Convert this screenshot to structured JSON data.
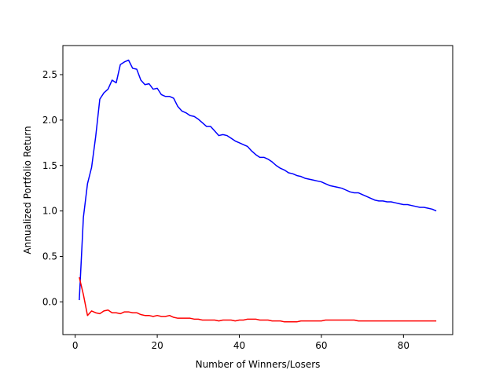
{
  "chart_data": {
    "type": "line",
    "title": "",
    "xlabel": "Number of Winners/Losers",
    "ylabel": "Annualized Portfolio Return",
    "xlim": [
      -3,
      92
    ],
    "ylim": [
      -0.36,
      2.82
    ],
    "xticks": [
      0,
      20,
      40,
      60,
      80
    ],
    "yticks": [
      0.0,
      0.5,
      1.0,
      1.5,
      2.0,
      2.5
    ],
    "yticks_labels": [
      "0.0",
      "0.5",
      "1.0",
      "1.5",
      "2.0",
      "2.5"
    ],
    "grid": false,
    "legend": "none",
    "series": [
      {
        "color": "#0000ff",
        "x": [
          1,
          2,
          3,
          4,
          5,
          6,
          7,
          8,
          9,
          10,
          11,
          12,
          13,
          14,
          15,
          16,
          17,
          18,
          19,
          20,
          21,
          22,
          23,
          24,
          25,
          26,
          27,
          28,
          29,
          30,
          31,
          32,
          33,
          34,
          35,
          36,
          37,
          38,
          39,
          40,
          41,
          42,
          43,
          44,
          45,
          46,
          47,
          48,
          49,
          50,
          51,
          52,
          53,
          54,
          55,
          56,
          57,
          58,
          59,
          60,
          61,
          62,
          63,
          64,
          65,
          66,
          67,
          68,
          69,
          70,
          71,
          72,
          73,
          74,
          75,
          76,
          77,
          78,
          79,
          80,
          81,
          82,
          83,
          84,
          85,
          86,
          87,
          88
        ],
        "y": [
          0.02,
          0.93,
          1.3,
          1.48,
          1.82,
          2.23,
          2.3,
          2.34,
          2.44,
          2.41,
          2.61,
          2.64,
          2.66,
          2.57,
          2.56,
          2.44,
          2.39,
          2.4,
          2.34,
          2.35,
          2.28,
          2.26,
          2.26,
          2.24,
          2.15,
          2.1,
          2.08,
          2.05,
          2.04,
          2.01,
          1.97,
          1.93,
          1.93,
          1.88,
          1.83,
          1.84,
          1.83,
          1.8,
          1.77,
          1.75,
          1.73,
          1.71,
          1.66,
          1.62,
          1.59,
          1.59,
          1.57,
          1.54,
          1.5,
          1.47,
          1.45,
          1.42,
          1.41,
          1.39,
          1.38,
          1.36,
          1.35,
          1.34,
          1.33,
          1.32,
          1.3,
          1.28,
          1.27,
          1.26,
          1.25,
          1.23,
          1.21,
          1.2,
          1.2,
          1.18,
          1.16,
          1.14,
          1.12,
          1.11,
          1.11,
          1.1,
          1.1,
          1.09,
          1.08,
          1.07,
          1.07,
          1.06,
          1.05,
          1.04,
          1.04,
          1.03,
          1.02,
          1.0
        ]
      },
      {
        "color": "#ff0000",
        "x": [
          1,
          2,
          3,
          4,
          5,
          6,
          7,
          8,
          9,
          10,
          11,
          12,
          13,
          14,
          15,
          16,
          17,
          18,
          19,
          20,
          21,
          22,
          23,
          24,
          25,
          26,
          27,
          28,
          29,
          30,
          31,
          32,
          33,
          34,
          35,
          36,
          37,
          38,
          39,
          40,
          41,
          42,
          43,
          44,
          45,
          46,
          47,
          48,
          49,
          50,
          51,
          52,
          53,
          54,
          55,
          56,
          57,
          58,
          59,
          60,
          61,
          62,
          63,
          64,
          65,
          66,
          67,
          68,
          69,
          70,
          71,
          72,
          73,
          74,
          75,
          76,
          77,
          78,
          79,
          80,
          81,
          82,
          83,
          84,
          85,
          86,
          87,
          88
        ],
        "y": [
          0.27,
          0.08,
          -0.15,
          -0.1,
          -0.12,
          -0.13,
          -0.1,
          -0.09,
          -0.12,
          -0.12,
          -0.13,
          -0.11,
          -0.11,
          -0.12,
          -0.12,
          -0.14,
          -0.15,
          -0.15,
          -0.16,
          -0.15,
          -0.16,
          -0.16,
          -0.15,
          -0.17,
          -0.18,
          -0.18,
          -0.18,
          -0.18,
          -0.19,
          -0.19,
          -0.2,
          -0.2,
          -0.2,
          -0.2,
          -0.21,
          -0.2,
          -0.2,
          -0.2,
          -0.21,
          -0.2,
          -0.2,
          -0.19,
          -0.19,
          -0.19,
          -0.2,
          -0.2,
          -0.2,
          -0.21,
          -0.21,
          -0.21,
          -0.22,
          -0.22,
          -0.22,
          -0.22,
          -0.21,
          -0.21,
          -0.21,
          -0.21,
          -0.21,
          -0.21,
          -0.2,
          -0.2,
          -0.2,
          -0.2,
          -0.2,
          -0.2,
          -0.2,
          -0.2,
          -0.21,
          -0.21,
          -0.21,
          -0.21,
          -0.21,
          -0.21,
          -0.21,
          -0.21,
          -0.21,
          -0.21,
          -0.21,
          -0.21,
          -0.21,
          -0.21,
          -0.21,
          -0.21,
          -0.21,
          -0.21,
          -0.21,
          -0.21
        ]
      }
    ]
  }
}
